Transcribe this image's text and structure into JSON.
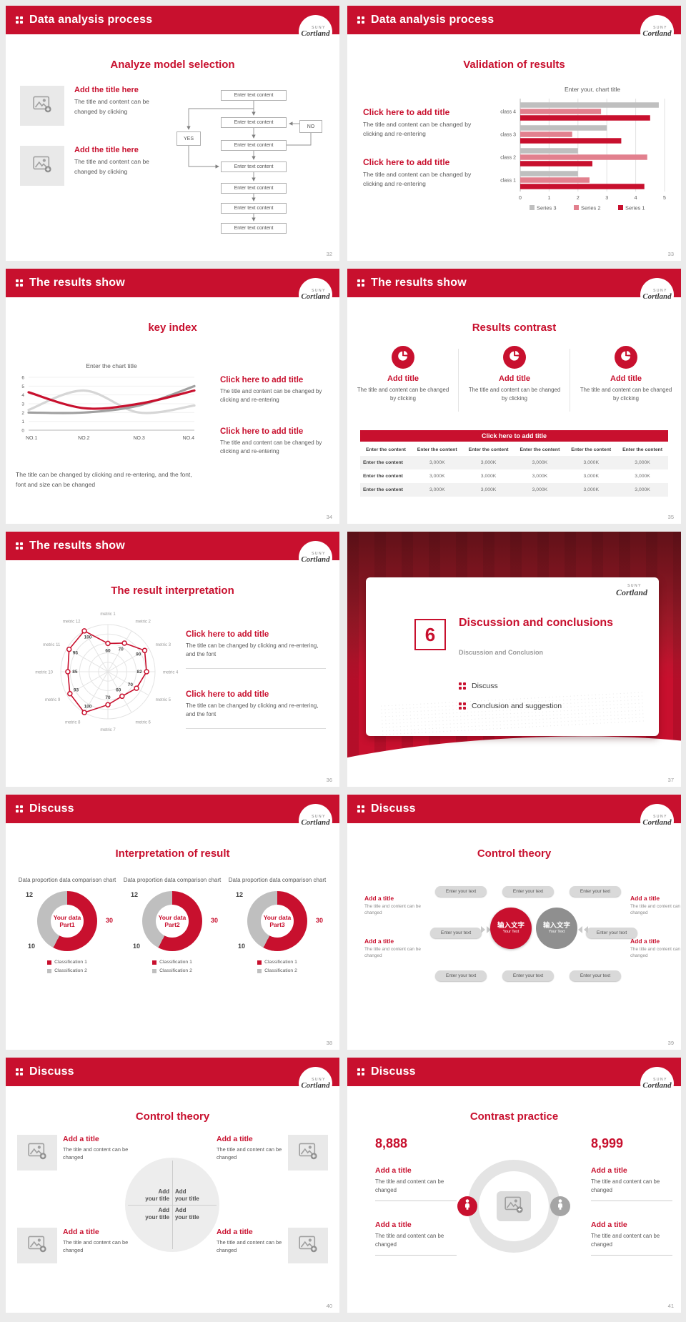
{
  "logo": {
    "suny": "SUNY",
    "name": "Cortland"
  },
  "slides": {
    "s1": {
      "header": "Data analysis process",
      "page": "32",
      "title": "Analyze model selection",
      "items": [
        {
          "title": "Add the title here",
          "body": "The title and content can be changed by clicking"
        },
        {
          "title": "Add the title here",
          "body": "The title and content can be changed by clicking"
        }
      ],
      "flowchart": {
        "box_label": "Enter text content",
        "yes_label": "YES",
        "no_label": "NO"
      }
    },
    "s2": {
      "header": "Data analysis process",
      "page": "33",
      "title": "Validation of results",
      "items": [
        {
          "title": "Click here to add title",
          "body": "The title and content can be changed by clicking and re-entering"
        },
        {
          "title": "Click here to add title",
          "body": "The title and content can be changed by clicking and re-entering"
        }
      ]
    },
    "s3": {
      "header": "The results show",
      "page": "34",
      "title": "key index",
      "items": [
        {
          "title": "Click here to add title",
          "body": "The title and content can be changed by clicking and re-entering"
        },
        {
          "title": "Click here to add title",
          "body": "The title and content can be changed by clicking and re-entering"
        }
      ],
      "footnote": "The title can be changed by clicking and re-entering, and the font, font and size can be changed"
    },
    "s4": {
      "header": "The results show",
      "page": "35",
      "title": "Results contrast",
      "cards": [
        {
          "title": "Add title",
          "body": "The title and content can be changed by clicking"
        },
        {
          "title": "Add title",
          "body": "The title and content can be changed by clicking"
        },
        {
          "title": "Add title",
          "body": "The title and content can be changed by clicking"
        }
      ],
      "band_title": "Click here to add title",
      "table": {
        "header": [
          "Enter the content",
          "Enter the content",
          "Enter the content",
          "Enter the content",
          "Enter the content",
          "Enter the content"
        ],
        "rows": [
          [
            "Enter the content",
            "3,000K",
            "3,000K",
            "3,000K",
            "3,000K",
            "3,000K"
          ],
          [
            "Enter the content",
            "3,000K",
            "3,000K",
            "3,000K",
            "3,000K",
            "3,000K"
          ],
          [
            "Enter the content",
            "3,000K",
            "3,000K",
            "3,000K",
            "3,000K",
            "3,000K"
          ]
        ]
      }
    },
    "s5": {
      "header": "The results show",
      "page": "36",
      "title": "The result interpretation",
      "items": [
        {
          "title": "Click here to add  title",
          "body": "The title can be changed by clicking and re-entering, and the font"
        },
        {
          "title": "Click here to add  title",
          "body": "The title can be changed by clicking and re-entering, and the font"
        }
      ]
    },
    "s6": {
      "page": "37",
      "number": "6",
      "title": "Discussion and conclusions",
      "subtitle": "Discussion and Conclusion",
      "bullets": [
        "Discuss",
        "Conclusion and suggestion"
      ]
    },
    "s7": {
      "header": "Discuss",
      "page": "38",
      "title": "Interpretation of result",
      "donut_heading": "Data proportion data comparison chart",
      "donuts": [
        {
          "center_top": "Your data",
          "center_bottom": "Part1"
        },
        {
          "center_top": "Your data",
          "center_bottom": "Part2"
        },
        {
          "center_top": "Your data",
          "center_bottom": "Part3"
        }
      ],
      "legend": [
        "Classification 1",
        "Classification 2"
      ]
    },
    "s8": {
      "header": "Discuss",
      "page": "39",
      "title": "Control theory",
      "pill_label": "Enter your text",
      "center_circles": [
        {
          "zh": "输入文字",
          "en": "Your Text"
        },
        {
          "zh": "输入文字",
          "en": "Your Text"
        }
      ],
      "left_items": [
        {
          "title": "Add a title",
          "body": "The title and content can be changed"
        },
        {
          "title": "Add a title",
          "body": "The title and content can be changed"
        }
      ],
      "right_items": [
        {
          "title": "Add a title",
          "body": "The title and content can be changed"
        },
        {
          "title": "Add a title",
          "body": "The title and content can be changed"
        }
      ]
    },
    "s9": {
      "header": "Discuss",
      "page": "40",
      "title": "Control theory",
      "quadrant_line1": "Add",
      "quadrant_line2": "your title",
      "items": [
        {
          "title": "Add a title",
          "body": "The title and content can be changed"
        },
        {
          "title": "Add a title",
          "body": "The title and content can be changed"
        },
        {
          "title": "Add a title",
          "body": "The title and content can be changed"
        },
        {
          "title": "Add a title",
          "body": "The title and content can be changed"
        }
      ]
    },
    "s10": {
      "header": "Discuss",
      "page": "41",
      "title": "Contrast practice",
      "left_number": "8,888",
      "right_number": "8,999",
      "left_items": [
        {
          "title": "Add a title",
          "body": "The title and content can be changed"
        },
        {
          "title": "Add a title",
          "body": "The title and content can be changed"
        }
      ],
      "right_items": [
        {
          "title": "Add a title",
          "body": "The title and content can be changed"
        },
        {
          "title": "Add a title",
          "body": "The title and content can be changed"
        }
      ]
    }
  },
  "chart_data": [
    {
      "id": "bar",
      "type": "bar",
      "orientation": "horizontal",
      "title": "Enter your, chart title",
      "categories": [
        "class 1",
        "class 2",
        "class 3",
        "class 4"
      ],
      "series": [
        {
          "name": "Series 1",
          "color": "#c8102e",
          "values": [
            4.3,
            2.5,
            3.5,
            4.5
          ]
        },
        {
          "name": "Series 2",
          "color": "#e2808e",
          "values": [
            2.4,
            4.4,
            1.8,
            2.8
          ]
        },
        {
          "name": "Series 3",
          "color": "#bfbfbf",
          "values": [
            2.0,
            2.0,
            3.0,
            4.8
          ]
        }
      ],
      "xlim": [
        0,
        5
      ],
      "grid": true,
      "legend_position": "bottom"
    },
    {
      "id": "line",
      "type": "line",
      "title": "Enter the chart title",
      "categories": [
        "NO.1",
        "NO.2",
        "NO.3",
        "NO.4"
      ],
      "series": [
        {
          "name": "Series 1",
          "color": "#c8102e",
          "values": [
            4.3,
            2.5,
            3.0,
            4.5
          ]
        },
        {
          "name": "Series 2",
          "color": "#a0a0a0",
          "values": [
            2.0,
            2.0,
            2.8,
            5.0
          ]
        },
        {
          "name": "Series 3",
          "color": "#d6d6d6",
          "values": [
            2.3,
            4.5,
            2.0,
            2.8
          ]
        }
      ],
      "ylim": [
        0,
        6
      ],
      "grid": true
    },
    {
      "id": "radar",
      "type": "radar",
      "axes": [
        "metric 1",
        "metric 2",
        "metric 3",
        "metric 4",
        "metric 5",
        "metric 6",
        "metric 7",
        "metric 8",
        "metric 9",
        "metric 10",
        "metric 11",
        "metric 12"
      ],
      "values": [
        60,
        70,
        90,
        82,
        70,
        60,
        70,
        100,
        93,
        85,
        95,
        100
      ],
      "max": 100,
      "color": "#c8102e"
    },
    {
      "id": "donut",
      "type": "pie",
      "slices": [
        {
          "label": "Classification 1",
          "value": 30,
          "color": "#c8102e"
        },
        {
          "label": "Classification 2",
          "value": 22,
          "color": "#bfbfbf"
        }
      ],
      "point_labels": [
        "12",
        "30",
        "10"
      ]
    }
  ]
}
